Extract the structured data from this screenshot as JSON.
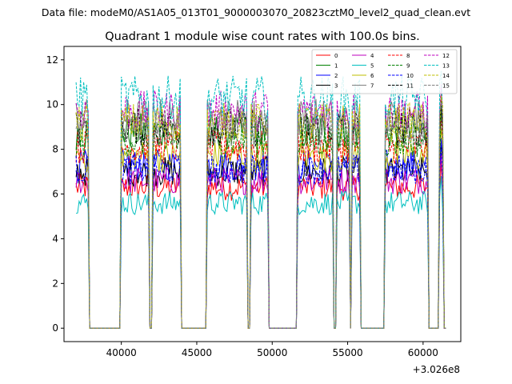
{
  "chart_data": {
    "type": "line",
    "suptitle": "Data file: modeM0/AS1A05_013T01_9000003070_20823cztM0_level2_quad_clean.evt",
    "title": "Quadrant 1 module wise count rates with 100.0s bins.",
    "xlabel": "",
    "ylabel": "",
    "x_offset_label": "+3.026e8",
    "xlim": [
      36200,
      62500
    ],
    "ylim": [
      -0.6,
      12.6
    ],
    "x_ticks": [
      40000,
      45000,
      50000,
      55000,
      60000
    ],
    "x_tick_labels": [
      "40000",
      "45000",
      "50000",
      "55000",
      "60000"
    ],
    "y_ticks": [
      0,
      2,
      4,
      6,
      8,
      10,
      12
    ],
    "y_tick_labels": [
      "0",
      "2",
      "4",
      "6",
      "8",
      "10",
      "12"
    ],
    "grid": false,
    "legend_location": "top-right",
    "legend_columns": 4,
    "bin_seconds": 100,
    "active_intervals": [
      [
        37000,
        37800
      ],
      [
        40000,
        41800
      ],
      [
        42100,
        43900
      ],
      [
        45700,
        48300
      ],
      [
        48600,
        49700
      ],
      [
        51700,
        54000
      ],
      [
        54300,
        55100
      ],
      [
        55300,
        55800
      ],
      [
        57500,
        60300
      ],
      [
        61100,
        61300
      ]
    ],
    "series": [
      {
        "name": "0",
        "color": "#ff0000",
        "dash": "solid",
        "level": 6.3
      },
      {
        "name": "1",
        "color": "#008000",
        "dash": "solid",
        "level": 8.8
      },
      {
        "name": "2",
        "color": "#0000ff",
        "dash": "solid",
        "level": 7.3
      },
      {
        "name": "3",
        "color": "#000000",
        "dash": "solid",
        "level": 7.0
      },
      {
        "name": "4",
        "color": "#bf00bf",
        "dash": "solid",
        "level": 6.6
      },
      {
        "name": "5",
        "color": "#00bfbf",
        "dash": "solid",
        "level": 5.6
      },
      {
        "name": "6",
        "color": "#bfbf00",
        "dash": "solid",
        "level": 7.7
      },
      {
        "name": "7",
        "color": "#808080",
        "dash": "solid",
        "level": 9.4
      },
      {
        "name": "8",
        "color": "#ff0000",
        "dash": "dashed",
        "level": 8.1
      },
      {
        "name": "9",
        "color": "#008000",
        "dash": "dashed",
        "level": 8.4
      },
      {
        "name": "10",
        "color": "#0000ff",
        "dash": "dashed",
        "level": 7.1
      },
      {
        "name": "11",
        "color": "#000000",
        "dash": "dashed",
        "level": 9.0
      },
      {
        "name": "12",
        "color": "#bf00bf",
        "dash": "dashed",
        "level": 9.7
      },
      {
        "name": "13",
        "color": "#00bfbf",
        "dash": "dashed",
        "level": 10.3
      },
      {
        "name": "14",
        "color": "#bfbf00",
        "dash": "dashed",
        "level": 9.2
      },
      {
        "name": "15",
        "color": "#808080",
        "dash": "dashed",
        "level": 8.9
      }
    ]
  }
}
